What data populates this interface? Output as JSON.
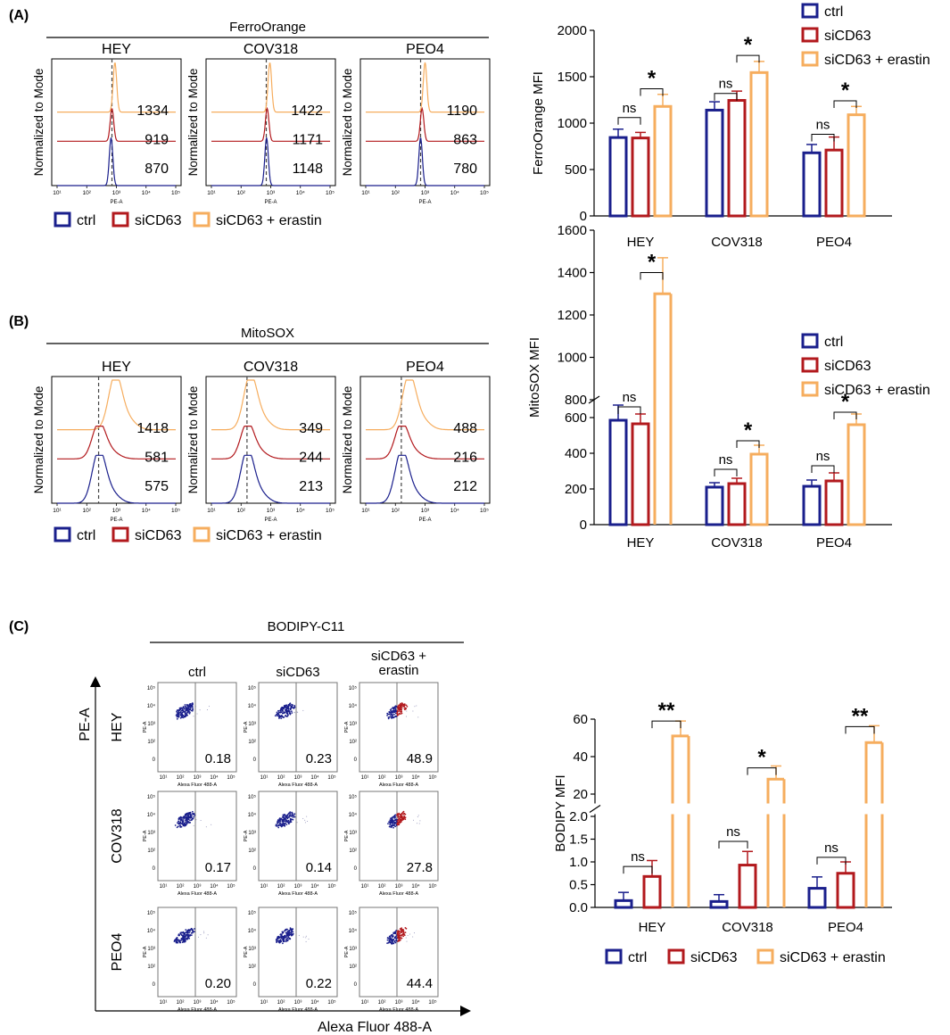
{
  "colors": {
    "ctrl": "#1a1f8c",
    "siCD63": "#b2191d",
    "erastin": "#f6ad5e",
    "axis": "#000000",
    "gray": "#666666"
  },
  "legend_labels": [
    "ctrl",
    "siCD63",
    "siCD63 + erastin"
  ],
  "panelA": {
    "label": "(A)",
    "hist_title": "FerroOrange",
    "cells": [
      {
        "name": "HEY",
        "values": [
          "1334",
          "919",
          "870"
        ],
        "peak_log": [
          2.95,
          2.85,
          2.82
        ]
      },
      {
        "name": "COV318",
        "values": [
          "1422",
          "1171",
          "1148"
        ],
        "peak_log": [
          2.97,
          2.88,
          2.86
        ]
      },
      {
        "name": "PEO4",
        "values": [
          "1190",
          "863",
          "780"
        ],
        "peak_log": [
          3.0,
          2.9,
          2.85
        ]
      }
    ],
    "hist_ylabel": "Normalized to Mode",
    "hist_xlabel": "PE-A",
    "decade_labels": [
      "10¹",
      "10²",
      "10³",
      "10⁴",
      "10⁵"
    ],
    "dashed_log": 2.85
  },
  "panelB": {
    "label": "(B)",
    "hist_title": "MitoSOX",
    "cells": [
      {
        "name": "HEY",
        "values": [
          "1418",
          "581",
          "575"
        ],
        "peak_log": [
          2.95,
          2.4,
          2.4
        ]
      },
      {
        "name": "COV318",
        "values": [
          "349",
          "244",
          "213"
        ],
        "peak_log": [
          2.3,
          2.2,
          2.2
        ]
      },
      {
        "name": "PEO4",
        "values": [
          "488",
          "216",
          "212"
        ],
        "peak_log": [
          2.45,
          2.2,
          2.2
        ]
      }
    ],
    "hist_ylabel": "Normalized to Mode",
    "hist_xlabel": "PE-A",
    "decade_labels": [
      "10¹",
      "10²",
      "10³",
      "10⁴",
      "10⁵"
    ],
    "dashed_log": [
      2.4,
      2.2,
      2.2
    ]
  },
  "panelC": {
    "label": "(C)",
    "title": "BODIPY-C11",
    "col_headers": [
      "ctrl",
      "siCD63",
      "siCD63 +\nerastin"
    ],
    "row_headers": [
      "HEY",
      "COV318",
      "PEO4"
    ],
    "values": [
      [
        "0.18",
        "0.23",
        "48.9"
      ],
      [
        "0.17",
        "0.14",
        "27.8"
      ],
      [
        "0.20",
        "0.22",
        "44.4"
      ]
    ],
    "y_axis": "PE-A",
    "x_axis": "Alexa Fluor 488-A",
    "dot_xlabel": "Alexa Fluor 488-A",
    "dot_ylabel": "PE-A",
    "dot_y_decades": [
      "10⁵",
      "10⁴",
      "10³",
      "10²",
      "0"
    ],
    "dot_x_decades": [
      "10¹",
      "10²",
      "10³",
      "10⁴",
      "10⁵"
    ]
  },
  "chart_data": [
    {
      "type": "bar",
      "title": "",
      "ylabel": "FerroOrange MFI",
      "categories": [
        "HEY",
        "COV318",
        "PEO4"
      ],
      "ylim": [
        0,
        2000
      ],
      "yticks": [
        0,
        500,
        1000,
        1500,
        2000
      ],
      "series": [
        {
          "name": "ctrl",
          "values": [
            845,
            1140,
            680
          ],
          "errors": [
            90,
            90,
            90
          ]
        },
        {
          "name": "siCD63",
          "values": [
            840,
            1245,
            710
          ],
          "errors": [
            60,
            100,
            140
          ]
        },
        {
          "name": "siCD63 + erastin",
          "values": [
            1180,
            1545,
            1090
          ],
          "errors": [
            130,
            120,
            90
          ]
        }
      ],
      "annotations": [
        "ns",
        "*",
        "ns",
        "*",
        "ns",
        "*"
      ]
    },
    {
      "type": "bar",
      "title": "",
      "ylabel": "MitoSOX MFI",
      "categories": [
        "HEY",
        "COV318",
        "PEO4"
      ],
      "ylim": [
        0,
        1600
      ],
      "axis_break": [
        700,
        800
      ],
      "yticks": [
        0,
        200,
        400,
        600,
        800,
        1000,
        1200,
        1400,
        1600
      ],
      "series": [
        {
          "name": "ctrl",
          "values": [
            585,
            210,
            215
          ],
          "errors": [
            85,
            25,
            35
          ]
        },
        {
          "name": "siCD63",
          "values": [
            565,
            230,
            245
          ],
          "errors": [
            55,
            30,
            45
          ]
        },
        {
          "name": "siCD63 + erastin",
          "values": [
            1300,
            395,
            560
          ],
          "errors": [
            170,
            50,
            60
          ]
        }
      ],
      "annotations": [
        "ns",
        "*",
        "ns",
        "*",
        "ns",
        "*"
      ]
    },
    {
      "type": "bar",
      "title": "",
      "ylabel": "BODIPY MFI",
      "categories": [
        "HEY",
        "COV318",
        "PEO4"
      ],
      "ylim": [
        0,
        60
      ],
      "axis_break": [
        2,
        20
      ],
      "yticks": [
        0.0,
        0.5,
        1.0,
        1.5,
        2.0,
        20,
        40,
        60
      ],
      "series": [
        {
          "name": "ctrl",
          "values": [
            0.15,
            0.13,
            0.42
          ],
          "errors": [
            0.18,
            0.15,
            0.25
          ]
        },
        {
          "name": "siCD63",
          "values": [
            0.68,
            0.93,
            0.75
          ],
          "errors": [
            0.35,
            0.3,
            0.25
          ]
        },
        {
          "name": "siCD63 + erastin",
          "values": [
            51,
            28,
            47.5
          ],
          "errors": [
            8,
            7,
            9
          ]
        }
      ],
      "annotations": [
        "ns",
        "**",
        "ns",
        "*",
        "ns",
        "**"
      ]
    }
  ]
}
